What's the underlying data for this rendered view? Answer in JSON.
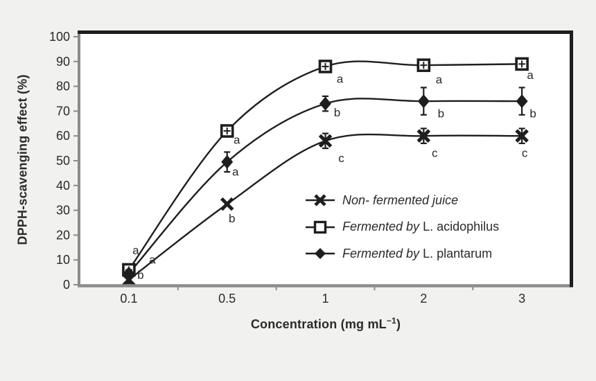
{
  "colors": {
    "background": "#f1f1f0",
    "plot_background": "#ffffff",
    "line": "#1f1d1e",
    "axis": "#8c8c8c",
    "text": "#2b2a29"
  },
  "chart_data": {
    "type": "line",
    "title": "",
    "xlabel": {
      "pre": "Concentration (mg mL",
      "sup": "−1",
      "post": ")"
    },
    "ylabel": "DPPH-scavenging effect (%)",
    "categories": [
      "0.1",
      "0.5",
      "1",
      "2",
      "3"
    ],
    "x_values": [
      0.1,
      0.5,
      1,
      2,
      3
    ],
    "ylim": [
      0,
      100
    ],
    "yticks": [
      "0",
      "10",
      "20",
      "30",
      "40",
      "50",
      "60",
      "70",
      "80",
      "90",
      "100"
    ],
    "grid": false,
    "legend_position": "inside-middle-right",
    "series": [
      {
        "name": "Non- fermented juice",
        "legend_italic": "Non- fermented juice",
        "legend_regular": "",
        "marker": "bold-x",
        "values": [
          2,
          32.5,
          58,
          60,
          60
        ],
        "errors": [
          1.5,
          0,
          3,
          3,
          3
        ],
        "point_labels": [
          "b",
          "b",
          "c",
          "c",
          "c"
        ]
      },
      {
        "name": "Fermented by L. acidophilus",
        "legend_italic": "Fermented by",
        "legend_regular": " L. acidophilus",
        "marker": "open-square",
        "values": [
          6,
          62,
          88,
          88.5,
          89
        ],
        "errors": [
          1.5,
          0,
          2,
          0,
          0
        ],
        "point_labels": [
          "a",
          "a",
          "a",
          "a",
          "a"
        ]
      },
      {
        "name": "Fermented by L. plantarum",
        "legend_italic": "Fermented by",
        "legend_regular": " L. plantarum",
        "marker": "filled-diamond",
        "values": [
          4.5,
          49.5,
          73,
          74,
          74
        ],
        "errors": [
          1.5,
          4,
          3,
          5.5,
          5.5
        ],
        "point_labels": [
          "a",
          "a",
          "b",
          "b",
          "b"
        ]
      }
    ],
    "label_offsets": [
      [
        [
          17,
          -7
        ],
        [
          7,
          21
        ],
        [
          23,
          25
        ],
        [
          16,
          25
        ],
        [
          4,
          25
        ]
      ],
      [
        [
          10,
          -28
        ],
        [
          14,
          13
        ],
        [
          21,
          18
        ],
        [
          22,
          21
        ],
        [
          12,
          16
        ]
      ],
      [
        [
          34,
          -20
        ],
        [
          12,
          14
        ],
        [
          17,
          13
        ],
        [
          25,
          18
        ],
        [
          16,
          18
        ]
      ]
    ]
  }
}
